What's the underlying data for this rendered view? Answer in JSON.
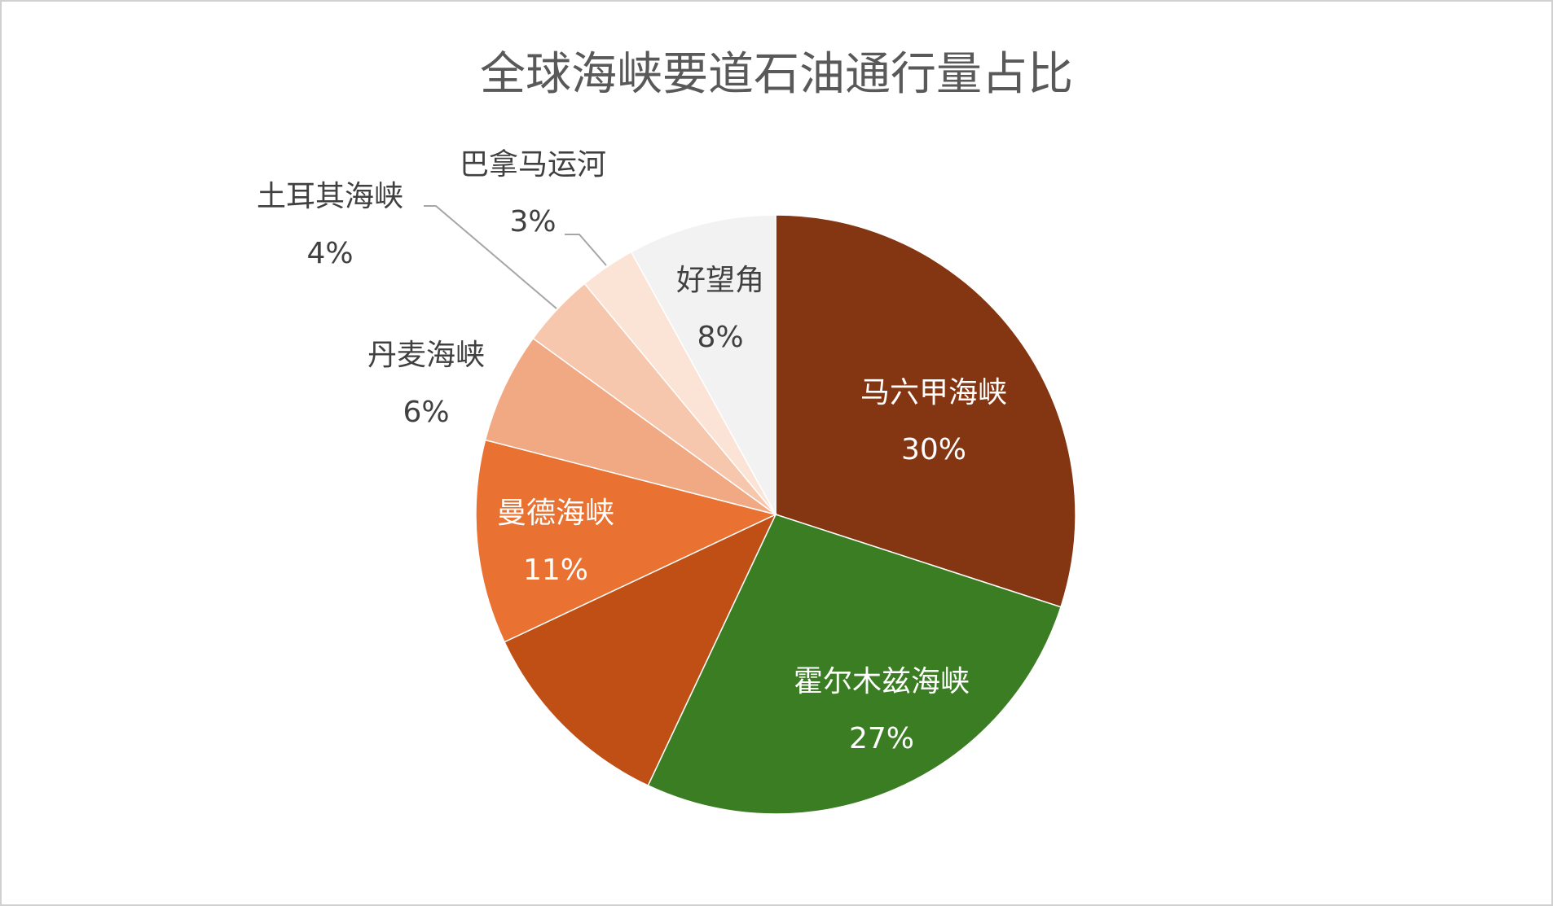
{
  "chart_data": {
    "type": "pie",
    "title": "全球海峡要道石油通行量占比",
    "categories": [
      "马六甲海峡",
      "霍尔木兹海峡",
      null,
      "曼德海峡",
      "丹麦海峡",
      "土耳其海峡",
      "巴拿马运河",
      "好望角"
    ],
    "values": [
      30,
      27,
      11,
      11,
      6,
      4,
      3,
      8
    ],
    "value_labels": [
      "30%",
      "27%",
      null,
      "11%",
      "6%",
      "4%",
      "3%",
      "8%"
    ],
    "colors": [
      "#843512",
      "#3b7d23",
      "#c04f15",
      "#e97132",
      "#f1a983",
      "#f6c6ad",
      "#fbe3d6",
      "#f2f2f2"
    ]
  }
}
